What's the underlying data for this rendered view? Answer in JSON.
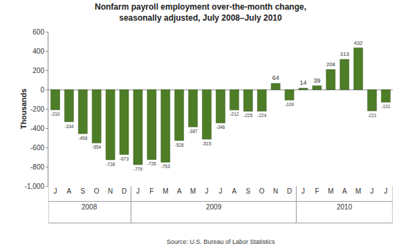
{
  "chart_data": {
    "type": "bar",
    "title": [
      "Nonfarm payroll employment over-the-month change,",
      "seasonally adjusted, July 2008–July 2010"
    ],
    "y_label": "Thousands",
    "source": "Source: U.S. Bureau of Labor Statistics",
    "categories": [
      "J",
      "A",
      "S",
      "O",
      "N",
      "D",
      "J",
      "F",
      "M",
      "A",
      "M",
      "J",
      "J",
      "A",
      "S",
      "O",
      "N",
      "D",
      "J",
      "F",
      "M",
      "A",
      "M",
      "J",
      "J"
    ],
    "groups": [
      "2008",
      "2008",
      "2008",
      "2008",
      "2008",
      "2008",
      "2009",
      "2009",
      "2009",
      "2009",
      "2009",
      "2009",
      "2009",
      "2009",
      "2009",
      "2009",
      "2009",
      "2009",
      "2010",
      "2010",
      "2010",
      "2010",
      "2010",
      "2010",
      "2010"
    ],
    "values": [
      -210,
      -334,
      -458,
      -554,
      -728,
      -673,
      -779,
      -726,
      -753,
      -528,
      -387,
      -515,
      -346,
      -212,
      -225,
      -224,
      64,
      -109,
      14,
      39,
      208,
      313,
      432,
      -221,
      -131
    ],
    "color": "#4e7d27",
    "ylim": [
      -1000,
      600
    ],
    "yticks": [
      {
        "value": -1000,
        "label": "-1,000"
      },
      -800,
      -600,
      -400,
      -200,
      0,
      200,
      400,
      600
    ],
    "grid": false,
    "data_labels": true
  }
}
